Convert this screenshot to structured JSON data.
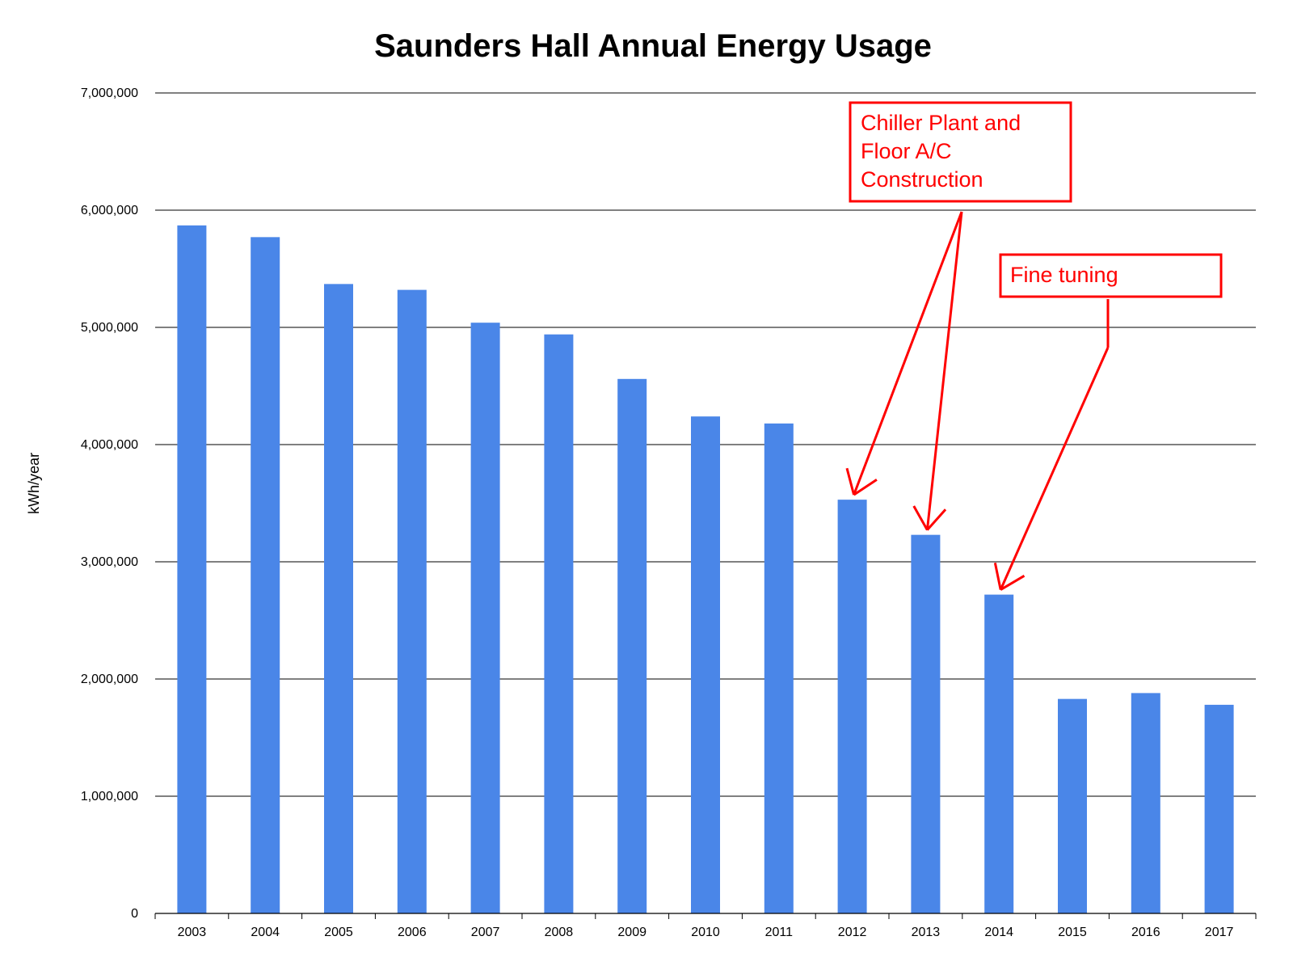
{
  "chart_data": {
    "type": "bar",
    "title": "Saunders Hall Annual Energy Usage",
    "xlabel": "",
    "ylabel": "kWh/year",
    "ylim": [
      0,
      7000000
    ],
    "yticks": [
      "0",
      "1,000,000",
      "2,000,000",
      "3,000,000",
      "4,000,000",
      "5,000,000",
      "6,000,000",
      "7,000,000"
    ],
    "categories": [
      "2003",
      "2004",
      "2005",
      "2006",
      "2007",
      "2008",
      "2009",
      "2010",
      "2011",
      "2012",
      "2013",
      "2014",
      "2015",
      "2016",
      "2017"
    ],
    "values": [
      5870000,
      5770000,
      5370000,
      5320000,
      5040000,
      4940000,
      4560000,
      4240000,
      4180000,
      3530000,
      3230000,
      2720000,
      1830000,
      1880000,
      1780000
    ],
    "bar_color": "#4a86e8",
    "grid": true,
    "annotations": [
      {
        "name": "chiller-annotation",
        "lines": [
          "Chiller Plant and",
          "Floor A/C",
          "Construction"
        ],
        "color": "#ff0000",
        "targets": [
          "2012",
          "2013"
        ]
      },
      {
        "name": "fine-tuning-annotation",
        "lines": [
          "Fine tuning"
        ],
        "color": "#ff0000",
        "targets": [
          "2014"
        ]
      }
    ]
  }
}
